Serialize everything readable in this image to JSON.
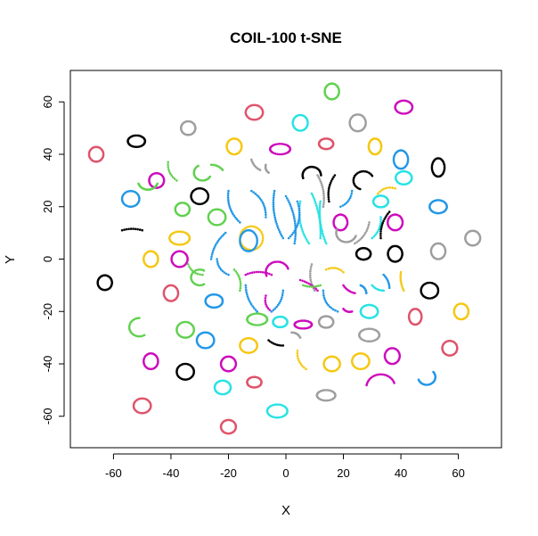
{
  "chart_data": {
    "type": "scatter",
    "title": "COIL-100 t-SNE",
    "xlabel": "X",
    "ylabel": "Y",
    "xlim": [
      -75,
      75
    ],
    "ylim": [
      -72,
      72
    ],
    "x_ticks": [
      -60,
      -40,
      -20,
      0,
      20,
      40,
      60
    ],
    "y_ticks": [
      -60,
      -40,
      -20,
      0,
      20,
      40,
      60
    ],
    "grid": false,
    "legend": "none",
    "palette": [
      "#000000",
      "#DF536B",
      "#61D04F",
      "#2297E6",
      "#28E2E5",
      "#CD0BBC",
      "#F5C710",
      "#9E9E9E"
    ],
    "clusters": [
      {
        "shape": "ring",
        "cx": 16,
        "cy": 64,
        "rx": 2.5,
        "ry": 3,
        "color": "#61D04F"
      },
      {
        "shape": "ring",
        "cx": 41,
        "cy": 58,
        "rx": 3,
        "ry": 2.5,
        "color": "#CD0BBC"
      },
      {
        "shape": "ring",
        "cx": -11,
        "cy": 56,
        "rx": 3,
        "ry": 2.8,
        "color": "#DF536B"
      },
      {
        "shape": "ring",
        "cx": 25,
        "cy": 52,
        "rx": 2.8,
        "ry": 3.2,
        "color": "#9E9E9E"
      },
      {
        "shape": "ring",
        "cx": -34,
        "cy": 50,
        "rx": 2.5,
        "ry": 2.6,
        "color": "#9E9E9E"
      },
      {
        "shape": "ring",
        "cx": 5,
        "cy": 52,
        "rx": 2.6,
        "ry": 3,
        "color": "#28E2E5"
      },
      {
        "shape": "ring",
        "cx": -18,
        "cy": 43,
        "rx": 2.6,
        "ry": 3,
        "color": "#F5C710"
      },
      {
        "shape": "ring",
        "cx": -52,
        "cy": 45,
        "rx": 3,
        "ry": 2.2,
        "color": "#000000"
      },
      {
        "shape": "ring",
        "cx": -66,
        "cy": 40,
        "rx": 2.5,
        "ry": 2.8,
        "color": "#DF536B"
      },
      {
        "shape": "ring",
        "cx": -2,
        "cy": 42,
        "rx": 3.5,
        "ry": 2,
        "color": "#CD0BBC"
      },
      {
        "shape": "ring",
        "cx": 14,
        "cy": 44,
        "rx": 2.5,
        "ry": 2,
        "color": "#DF536B"
      },
      {
        "shape": "ring",
        "cx": 31,
        "cy": 43,
        "rx": 2.2,
        "ry": 3,
        "color": "#F5C710"
      },
      {
        "shape": "ring",
        "cx": 40,
        "cy": 38,
        "rx": 2.5,
        "ry": 3.5,
        "color": "#2297E6"
      },
      {
        "shape": "ring",
        "cx": 53,
        "cy": 35,
        "rx": 2.2,
        "ry": 3.5,
        "color": "#000000"
      },
      {
        "shape": "ring",
        "cx": 41,
        "cy": 31,
        "rx": 2.8,
        "ry": 2.5,
        "color": "#28E2E5"
      },
      {
        "shape": "ring",
        "cx": -45,
        "cy": 30,
        "rx": 2.6,
        "ry": 2.8,
        "color": "#CD0BBC"
      },
      {
        "shape": "ring",
        "cx": -54,
        "cy": 23,
        "rx": 3,
        "ry": 3,
        "color": "#2297E6"
      },
      {
        "shape": "ring",
        "cx": -30,
        "cy": 24,
        "rx": 3,
        "ry": 3,
        "color": "#000000"
      },
      {
        "shape": "ring",
        "cx": -24,
        "cy": 16,
        "rx": 3,
        "ry": 3,
        "color": "#61D04F"
      },
      {
        "shape": "ring",
        "cx": -36,
        "cy": 19,
        "rx": 2.5,
        "ry": 2.5,
        "color": "#61D04F"
      },
      {
        "shape": "ring",
        "cx": 19,
        "cy": 14,
        "rx": 2.4,
        "ry": 3,
        "color": "#CD0BBC"
      },
      {
        "shape": "ring",
        "cx": 38,
        "cy": 14,
        "rx": 2.6,
        "ry": 3,
        "color": "#CD0BBC"
      },
      {
        "shape": "ring",
        "cx": 33,
        "cy": 22,
        "rx": 2.6,
        "ry": 2.2,
        "color": "#28E2E5"
      },
      {
        "shape": "ring",
        "cx": 53,
        "cy": 20,
        "rx": 3,
        "ry": 2.5,
        "color": "#2297E6"
      },
      {
        "shape": "ring",
        "cx": -12,
        "cy": 8,
        "rx": 4,
        "ry": 4.5,
        "color": "#F5C710"
      },
      {
        "shape": "ring",
        "cx": -13,
        "cy": 7,
        "rx": 3,
        "ry": 4,
        "color": "#2297E6"
      },
      {
        "shape": "ring",
        "cx": -37,
        "cy": 8,
        "rx": 3.5,
        "ry": 2.5,
        "color": "#F5C710"
      },
      {
        "shape": "ring",
        "cx": -47,
        "cy": 0,
        "rx": 2.5,
        "ry": 3,
        "color": "#F5C710"
      },
      {
        "shape": "ring",
        "cx": -37,
        "cy": 0,
        "rx": 2.8,
        "ry": 3,
        "color": "#CD0BBC"
      },
      {
        "shape": "ring",
        "cx": 53,
        "cy": 3,
        "rx": 2.5,
        "ry": 3,
        "color": "#9E9E9E"
      },
      {
        "shape": "ring",
        "cx": 65,
        "cy": 8,
        "rx": 2.6,
        "ry": 2.8,
        "color": "#9E9E9E"
      },
      {
        "shape": "ring",
        "cx": 38,
        "cy": 2,
        "rx": 2.5,
        "ry": 3,
        "color": "#000000"
      },
      {
        "shape": "ring",
        "cx": -63,
        "cy": -9,
        "rx": 2.5,
        "ry": 2.8,
        "color": "#000000"
      },
      {
        "shape": "ring",
        "cx": -40,
        "cy": -13,
        "rx": 2.5,
        "ry": 3,
        "color": "#DF536B"
      },
      {
        "shape": "ring",
        "cx": -25,
        "cy": -16,
        "rx": 3,
        "ry": 2.5,
        "color": "#2297E6"
      },
      {
        "shape": "ring",
        "cx": 50,
        "cy": -12,
        "rx": 3,
        "ry": 3,
        "color": "#000000"
      },
      {
        "shape": "ring",
        "cx": -35,
        "cy": -27,
        "rx": 3,
        "ry": 3,
        "color": "#61D04F"
      },
      {
        "shape": "ring",
        "cx": -28,
        "cy": -31,
        "rx": 3,
        "ry": 3,
        "color": "#2297E6"
      },
      {
        "shape": "ring",
        "cx": -13,
        "cy": -33,
        "rx": 3,
        "ry": 2.8,
        "color": "#F5C710"
      },
      {
        "shape": "ring",
        "cx": -47,
        "cy": -39,
        "rx": 2.5,
        "ry": 3,
        "color": "#CD0BBC"
      },
      {
        "shape": "ring",
        "cx": -35,
        "cy": -43,
        "rx": 3,
        "ry": 3,
        "color": "#000000"
      },
      {
        "shape": "ring",
        "cx": -20,
        "cy": -40,
        "rx": 2.6,
        "ry": 2.8,
        "color": "#CD0BBC"
      },
      {
        "shape": "ring",
        "cx": 16,
        "cy": -40,
        "rx": 2.8,
        "ry": 2.8,
        "color": "#F5C710"
      },
      {
        "shape": "ring",
        "cx": 26,
        "cy": -39,
        "rx": 3,
        "ry": 3,
        "color": "#F5C710"
      },
      {
        "shape": "ring",
        "cx": 37,
        "cy": -37,
        "rx": 2.6,
        "ry": 3,
        "color": "#CD0BBC"
      },
      {
        "shape": "ring",
        "cx": 57,
        "cy": -34,
        "rx": 2.6,
        "ry": 2.8,
        "color": "#DF536B"
      },
      {
        "shape": "ring",
        "cx": 29,
        "cy": -29,
        "rx": 3.5,
        "ry": 2.4,
        "color": "#9E9E9E"
      },
      {
        "shape": "ring",
        "cx": 14,
        "cy": -24,
        "rx": 2.5,
        "ry": 2.2,
        "color": "#9E9E9E"
      },
      {
        "shape": "ring",
        "cx": 29,
        "cy": -20,
        "rx": 3,
        "ry": 2.5,
        "color": "#28E2E5"
      },
      {
        "shape": "ring",
        "cx": -50,
        "cy": -56,
        "rx": 3,
        "ry": 2.8,
        "color": "#DF536B"
      },
      {
        "shape": "ring",
        "cx": -22,
        "cy": -49,
        "rx": 2.8,
        "ry": 2.6,
        "color": "#28E2E5"
      },
      {
        "shape": "ring",
        "cx": -20,
        "cy": -64,
        "rx": 2.6,
        "ry": 2.6,
        "color": "#DF536B"
      },
      {
        "shape": "ring",
        "cx": -3,
        "cy": -58,
        "rx": 3.5,
        "ry": 2.5,
        "color": "#28E2E5"
      },
      {
        "shape": "ring",
        "cx": 14,
        "cy": -52,
        "rx": 3.2,
        "ry": 2,
        "color": "#9E9E9E"
      },
      {
        "shape": "ring",
        "cx": -10,
        "cy": -23,
        "rx": 3.5,
        "ry": 2.2,
        "color": "#61D04F"
      },
      {
        "shape": "ring",
        "cx": -11,
        "cy": -47,
        "rx": 2.5,
        "ry": 2,
        "color": "#DF536B"
      },
      {
        "shape": "ring",
        "cx": 45,
        "cy": -22,
        "rx": 2.2,
        "ry": 3,
        "color": "#DF536B"
      },
      {
        "shape": "ring",
        "cx": 61,
        "cy": -20,
        "rx": 2.5,
        "ry": 3,
        "color": "#F5C710"
      },
      {
        "shape": "ring",
        "cx": -2,
        "cy": -24,
        "rx": 2.5,
        "ry": 2,
        "color": "#28E2E5"
      },
      {
        "shape": "ring",
        "cx": 6,
        "cy": -25,
        "rx": 3,
        "ry": 1.5,
        "color": "#CD0BBC"
      },
      {
        "shape": "ring",
        "cx": 27,
        "cy": 2,
        "rx": 2.5,
        "ry": 2.2,
        "color": "#000000"
      },
      {
        "shape": "arc",
        "cx": 27,
        "cy": 30,
        "r": 3.5,
        "a1": 30,
        "a2": 250,
        "color": "#000000"
      },
      {
        "shape": "arc",
        "cx": -48,
        "cy": 30,
        "r": 3.5,
        "a1": 200,
        "a2": 340,
        "color": "#61D04F"
      },
      {
        "shape": "arc",
        "cx": -29,
        "cy": 33,
        "r": 3,
        "a1": 120,
        "a2": 330,
        "color": "#61D04F"
      },
      {
        "shape": "arc",
        "cx": 9,
        "cy": 32,
        "r": 3.2,
        "a1": 0,
        "a2": 200,
        "color": "#000000"
      },
      {
        "shape": "arc",
        "cx": -51,
        "cy": -26,
        "r": 3.5,
        "a1": 90,
        "a2": 300,
        "color": "#61D04F"
      },
      {
        "shape": "arc",
        "cx": 33,
        "cy": -49,
        "r": 5,
        "a1": 20,
        "a2": 170,
        "color": "#CD0BBC"
      },
      {
        "shape": "arc",
        "cx": 49,
        "cy": -45,
        "r": 3,
        "a1": 200,
        "a2": 400,
        "color": "#2297E6"
      },
      {
        "shape": "arc",
        "cx": -30,
        "cy": -7,
        "r": 3,
        "a1": 60,
        "a2": 300,
        "color": "#61D04F"
      },
      {
        "shape": "arc",
        "cx": -3,
        "cy": -5,
        "r": 4,
        "a1": 20,
        "a2": 200,
        "color": "#CD0BBC"
      },
      {
        "shape": "arc",
        "cx": 21,
        "cy": 10,
        "r": 3.5,
        "a1": 160,
        "a2": 340,
        "color": "#9E9E9E"
      },
      {
        "shape": "curve",
        "x1": -20,
        "y1": 26,
        "x2": -16,
        "y2": 14,
        "bend": 3,
        "color": "#2297E6"
      },
      {
        "shape": "curve",
        "x1": -12,
        "y1": 26,
        "x2": -7,
        "y2": 16,
        "bend": -3,
        "color": "#2297E6"
      },
      {
        "shape": "curve",
        "x1": -4,
        "y1": 26,
        "x2": -1,
        "y2": 8,
        "bend": 3,
        "color": "#2297E6"
      },
      {
        "shape": "curve",
        "x1": 0,
        "y1": 24,
        "x2": 3,
        "y2": 6,
        "bend": -3,
        "color": "#2297E6"
      },
      {
        "shape": "curve",
        "x1": 5,
        "y1": 22,
        "x2": 8,
        "y2": 6,
        "bend": 3,
        "color": "#28E2E5"
      },
      {
        "shape": "curve",
        "x1": 9,
        "y1": 25,
        "x2": 12,
        "y2": 8,
        "bend": -2,
        "color": "#28E2E5"
      },
      {
        "shape": "curve",
        "x1": 12,
        "y1": 22,
        "x2": 14,
        "y2": 6,
        "bend": 2,
        "color": "#28E2E5"
      },
      {
        "shape": "curve",
        "x1": 1,
        "y1": 8,
        "x2": 4,
        "y2": 22,
        "bend": 4,
        "color": "#2297E6"
      },
      {
        "shape": "curve",
        "x1": -21,
        "y1": 10,
        "x2": -26,
        "y2": 0,
        "bend": 2,
        "color": "#2297E6"
      },
      {
        "shape": "curve",
        "x1": -14,
        "y1": -10,
        "x2": -10,
        "y2": -20,
        "bend": 2,
        "color": "#2297E6"
      },
      {
        "shape": "curve",
        "x1": -7,
        "y1": -14,
        "x2": -5,
        "y2": -20,
        "bend": 2,
        "color": "#CD0BBC"
      },
      {
        "shape": "curve",
        "x1": -1,
        "y1": -12,
        "x2": -5,
        "y2": -20,
        "bend": -2,
        "color": "#2297E6"
      },
      {
        "shape": "curve",
        "x1": 13,
        "y1": -12,
        "x2": 18,
        "y2": -20,
        "bend": 3,
        "color": "#2297E6"
      },
      {
        "shape": "curve",
        "x1": 14,
        "y1": -4,
        "x2": 20,
        "y2": -5,
        "bend": -2,
        "color": "#F5C710"
      },
      {
        "shape": "curve",
        "x1": -14,
        "y1": -6,
        "x2": -5,
        "y2": -6,
        "bend": -2,
        "color": "#CD0BBC"
      },
      {
        "shape": "curve",
        "x1": -24,
        "y1": 0,
        "x2": -20,
        "y2": -6,
        "bend": 2,
        "color": "#2297E6"
      },
      {
        "shape": "curve",
        "x1": -34,
        "y1": -2,
        "x2": -29,
        "y2": -6,
        "bend": 2,
        "color": "#61D04F"
      },
      {
        "shape": "curve",
        "x1": -18,
        "y1": -4,
        "x2": -16,
        "y2": -12,
        "bend": -2,
        "color": "#61D04F"
      },
      {
        "shape": "curve",
        "x1": 19,
        "y1": 20,
        "x2": 23,
        "y2": 26,
        "bend": 2,
        "color": "#2297E6"
      },
      {
        "shape": "curve",
        "x1": 24,
        "y1": 6,
        "x2": 29,
        "y2": 14,
        "bend": 2,
        "color": "#9E9E9E"
      },
      {
        "shape": "curve",
        "x1": 30,
        "y1": 8,
        "x2": 33,
        "y2": 16,
        "bend": 2,
        "color": "#28E2E5"
      },
      {
        "shape": "curve",
        "x1": 33,
        "y1": 8,
        "x2": 36,
        "y2": 18,
        "bend": -2,
        "color": "#000000"
      },
      {
        "shape": "curve",
        "x1": 11,
        "y1": 32,
        "x2": 13,
        "y2": 20,
        "bend": -2,
        "color": "#9E9E9E"
      },
      {
        "shape": "curve",
        "x1": 17,
        "y1": 32,
        "x2": 15,
        "y2": 22,
        "bend": 2,
        "color": "#000000"
      },
      {
        "shape": "curve",
        "x1": 32,
        "y1": 25,
        "x2": 38,
        "y2": 27,
        "bend": -2,
        "color": "#F5C710"
      },
      {
        "shape": "curve",
        "x1": -57,
        "y1": 11,
        "x2": -50,
        "y2": 11,
        "bend": -1,
        "color": "#000000"
      },
      {
        "shape": "curve",
        "x1": -41,
        "y1": 37,
        "x2": -38,
        "y2": 30,
        "bend": 2,
        "color": "#61D04F"
      },
      {
        "shape": "curve",
        "x1": -26,
        "y1": 36,
        "x2": -22,
        "y2": 34,
        "bend": -1,
        "color": "#61D04F"
      },
      {
        "shape": "curve",
        "x1": -12,
        "y1": 38,
        "x2": -9,
        "y2": 34,
        "bend": 1,
        "color": "#9E9E9E"
      },
      {
        "shape": "curve",
        "x1": -7,
        "y1": 36,
        "x2": -6,
        "y2": 33,
        "bend": 1,
        "color": "#9E9E9E"
      },
      {
        "shape": "curve",
        "x1": 9,
        "y1": -2,
        "x2": 10,
        "y2": -12,
        "bend": 2,
        "color": "#9E9E9E"
      },
      {
        "shape": "curve",
        "x1": 5,
        "y1": -8,
        "x2": 11,
        "y2": -12,
        "bend": -1,
        "color": "#CD0BBC"
      },
      {
        "shape": "curve",
        "x1": 6,
        "y1": -10,
        "x2": 12,
        "y2": -10,
        "bend": 1,
        "color": "#61D04F"
      },
      {
        "shape": "curve",
        "x1": 20,
        "y1": -10,
        "x2": 24,
        "y2": -13,
        "bend": 1,
        "color": "#CD0BBC"
      },
      {
        "shape": "curve",
        "x1": 26,
        "y1": -10,
        "x2": 28,
        "y2": -13,
        "bend": -1,
        "color": "#2297E6"
      },
      {
        "shape": "curve",
        "x1": 30,
        "y1": -10,
        "x2": 34,
        "y2": -12,
        "bend": 1,
        "color": "#28E2E5"
      },
      {
        "shape": "curve",
        "x1": 20,
        "y1": -19,
        "x2": 23,
        "y2": -20,
        "bend": 1,
        "color": "#CD0BBC"
      },
      {
        "shape": "curve",
        "x1": -6,
        "y1": -31,
        "x2": -1,
        "y2": -33,
        "bend": 1,
        "color": "#000000"
      },
      {
        "shape": "curve",
        "x1": 4,
        "y1": -35,
        "x2": 7,
        "y2": -42,
        "bend": 2,
        "color": "#F5C710"
      },
      {
        "shape": "curve",
        "x1": 2,
        "y1": -28,
        "x2": 5,
        "y2": -30,
        "bend": -1,
        "color": "#9E9E9E"
      },
      {
        "shape": "curve",
        "x1": 40,
        "y1": -5,
        "x2": 41,
        "y2": -12,
        "bend": 1,
        "color": "#F5C710"
      },
      {
        "shape": "curve",
        "x1": 34,
        "y1": -6,
        "x2": 36,
        "y2": -11,
        "bend": -1,
        "color": "#2297E6"
      }
    ]
  }
}
